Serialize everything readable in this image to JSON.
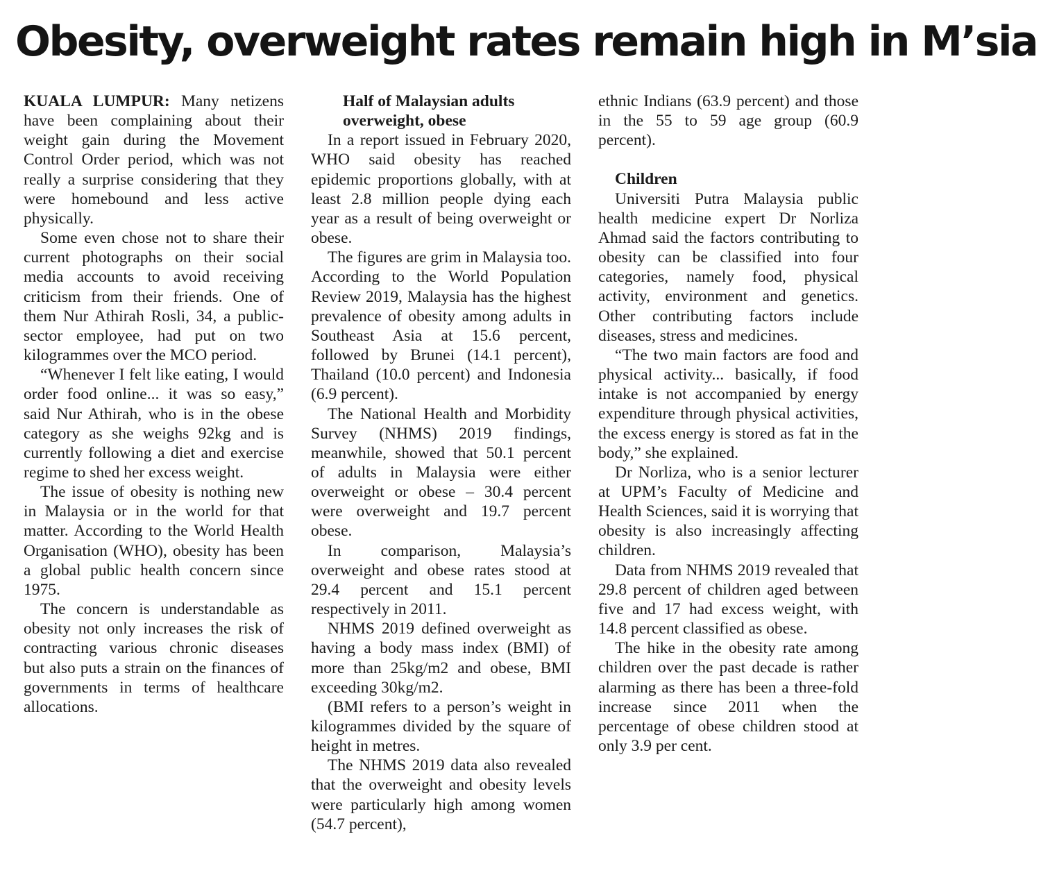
{
  "headline": "Obesity, overweight rates remain high in M’sia",
  "column1": {
    "dateline": "KUALA LUMPUR:",
    "p1": "Many netizens have been complaining about their weight gain during the Movement Control Order period, which was not really a surprise considering that they were homebound and less active physically.",
    "p2": "Some even chose not to share their current photographs on their social media accounts to avoid receiving criticism from their friends. One of them Nur Athirah Rosli, 34, a public-sector employee, had put on two kilogrammes over the MCO period.",
    "p3": "“Whenever I felt like eating, I would order food online... it was so easy,” said Nur Athirah, who is in the obese category as she weighs 92kg and is currently following a diet and exercise regime to shed her excess weight.",
    "p4": "The issue of obesity is nothing new in Malaysia or in the world for that matter. According to the World Health Organisation (WHO), obesity has been a global public health concern since 1975.",
    "p5": "The concern is understandable as obesity not only increases the risk of contracting various chronic diseases but also puts a strain on the finances of governments in terms of healthcare allocations."
  },
  "column2": {
    "subhead": "Half of Malaysian adults overweight, obese",
    "p1": "In a report issued in February 2020, WHO said obesity has reached epidemic proportions globally, with at least 2.8 million people dying each year as a result of being overweight or obese.",
    "p2": "The figures are grim in Malaysia too. According to the World Population Review 2019, Malaysia has the highest prevalence of obesity among adults in Southeast Asia at 15.6 percent, followed by Brunei (14.1 percent), Thailand (10.0 percent) and Indonesia (6.9 percent).",
    "p3": "The National Health and Morbidity Survey (NHMS) 2019 findings, meanwhile, showed that 50.1 percent of adults in Malaysia were either overweight or obese – 30.4 percent were overweight and 19.7 percent obese.",
    "p4": "In comparison, Malaysia’s overweight and obese rates stood at 29.4 percent and 15.1 percent respectively in 2011.",
    "p5": "NHMS 2019 defined overweight as having a body mass index (BMI) of more than 25kg/m2 and obese, BMI exceeding 30kg/m2.",
    "p6": "(BMI refers to a person’s weight in kilogrammes divided by the square of height in metres.",
    "p7": "The NHMS 2019 data also revealed that the overweight and obesity levels were particularly high among women (54.7 percent),"
  },
  "column3": {
    "p1": "ethnic Indians (63.9 percent) and those in the 55 to 59 age group (60.9 percent).",
    "subhead": "Children",
    "p2": "Universiti Putra Malaysia public health medicine expert Dr Norliza Ahmad said the factors contributing to obesity can be classified into four categories, namely food, physical activity, environment and genetics. Other contributing factors include diseases, stress and medicines.",
    "p3": "“The two main factors are food and physical activity... basically, if food intake is not accompanied by energy expenditure through physical activities, the excess energy is stored as fat in the body,” she explained.",
    "p4": "Dr Norliza, who is a senior lecturer at UPM’s Faculty of Medicine and Health Sciences, said it is worrying that obesity is also increasingly affecting children.",
    "p5": "Data from NHMS 2019 revealed that 29.8 percent of children aged between five and 17 had excess weight, with 14.8 percent classified as obese.",
    "p6": "The hike in the obesity rate among children over the past decade is rather alarming as there has been a three-fold increase since 2011 when the percentage of obese children stood at only 3.9 per cent."
  }
}
